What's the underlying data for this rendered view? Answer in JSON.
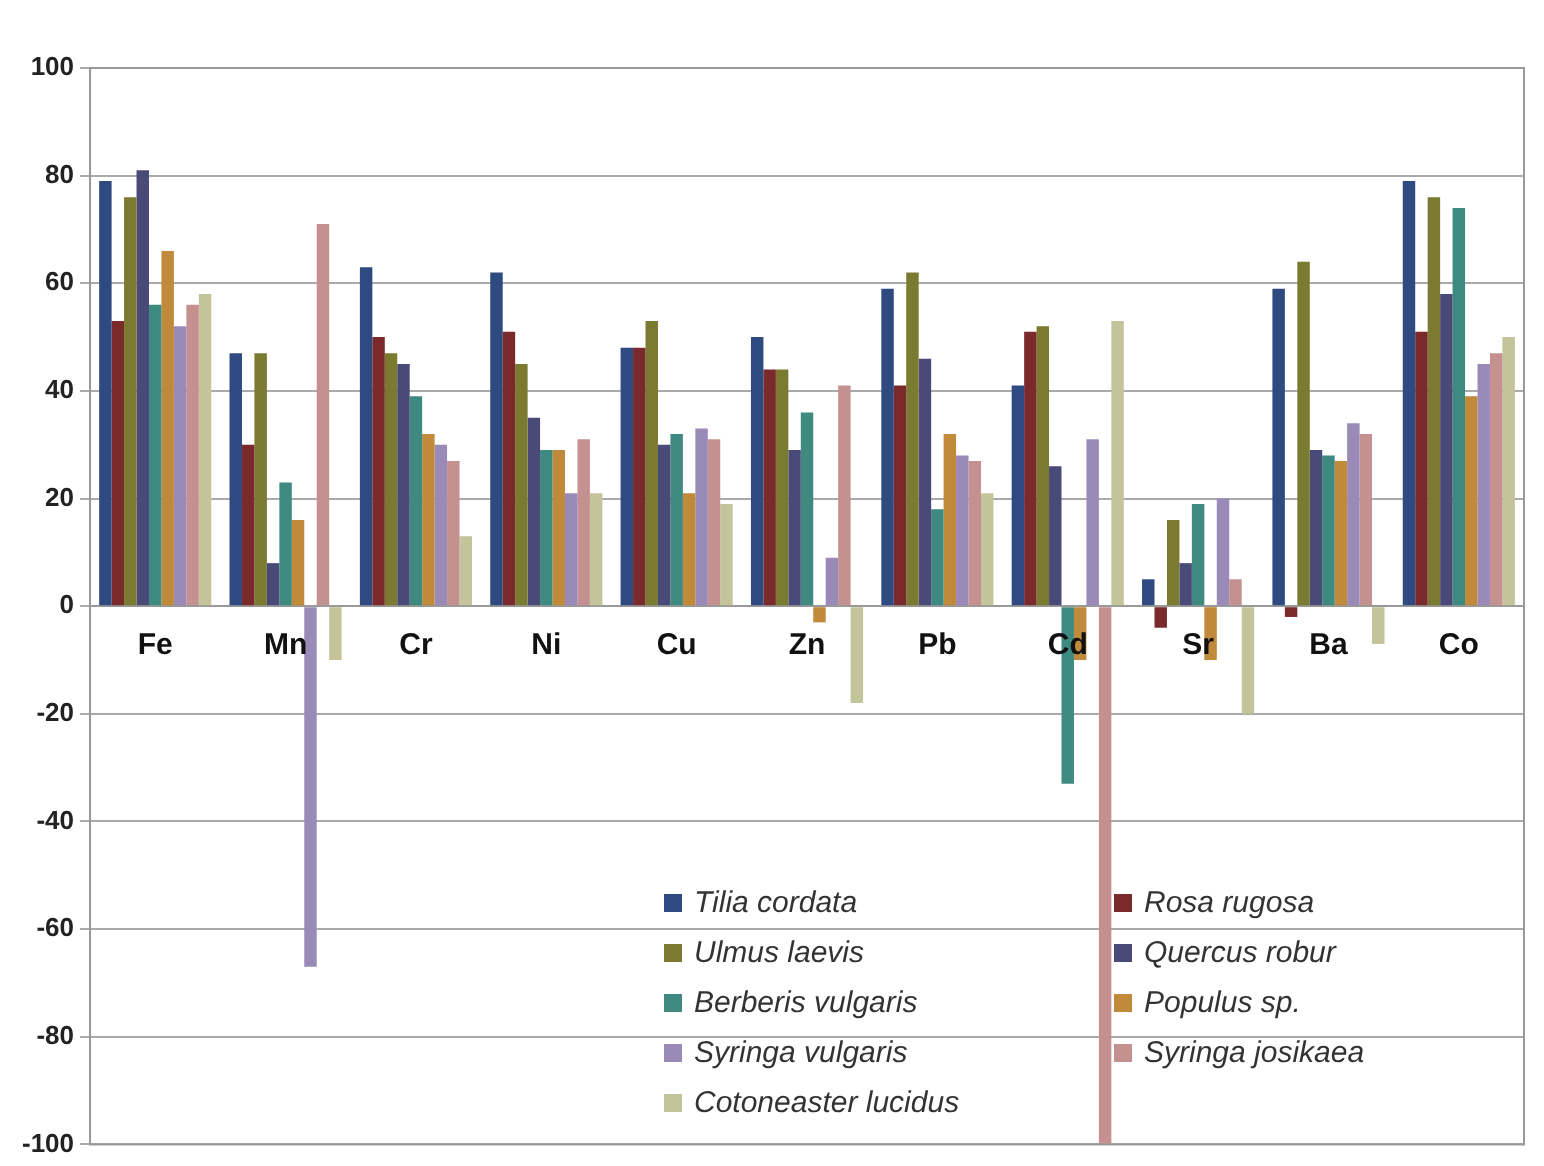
{
  "chart_data": {
    "type": "bar",
    "categories": [
      "Fe",
      "Mn",
      "Cr",
      "Ni",
      "Cu",
      "Zn",
      "Pb",
      "Cd",
      "Sr",
      "Ba",
      "Co"
    ],
    "series": [
      {
        "name": "Tilia cordata",
        "color": "#2e4a80",
        "values": [
          79,
          47,
          63,
          62,
          48,
          50,
          59,
          41,
          5,
          59,
          79
        ]
      },
      {
        "name": "Rosa rugosa",
        "color": "#7a2a2a",
        "values": [
          53,
          30,
          50,
          51,
          48,
          44,
          41,
          51,
          -4,
          -2,
          51
        ]
      },
      {
        "name": "Ulmus laevis",
        "color": "#7a7a30",
        "values": [
          76,
          47,
          47,
          45,
          53,
          44,
          62,
          52,
          16,
          64,
          76
        ]
      },
      {
        "name": "Quercus robur",
        "color": "#4a4a78",
        "values": [
          81,
          8,
          45,
          35,
          30,
          29,
          46,
          26,
          8,
          29,
          58
        ]
      },
      {
        "name": "Berberis vulgaris",
        "color": "#3f8a80",
        "values": [
          56,
          23,
          39,
          29,
          32,
          36,
          18,
          -33,
          19,
          28,
          74
        ]
      },
      {
        "name": "Populus sp.",
        "color": "#c08a3a",
        "values": [
          66,
          16,
          32,
          29,
          21,
          -3,
          32,
          -10,
          -10,
          27,
          39
        ]
      },
      {
        "name": "Syringa vulgaris",
        "color": "#9a8ab8",
        "values": [
          52,
          -67,
          30,
          21,
          33,
          9,
          28,
          31,
          20,
          34,
          45
        ]
      },
      {
        "name": "Syringa josikaea",
        "color": "#c49090",
        "values": [
          56,
          71,
          27,
          31,
          31,
          41,
          27,
          -100,
          5,
          32,
          47
        ]
      },
      {
        "name": "Cotoneaster lucidus",
        "color": "#c4c49a",
        "values": [
          58,
          -10,
          13,
          21,
          19,
          -18,
          21,
          53,
          -20,
          -7,
          50
        ]
      }
    ],
    "ylim": [
      -100,
      100
    ],
    "yticks": [
      -100,
      -80,
      -60,
      -40,
      -20,
      0,
      20,
      40,
      60,
      80,
      100
    ],
    "grid": "y",
    "legend": "bottom right"
  }
}
